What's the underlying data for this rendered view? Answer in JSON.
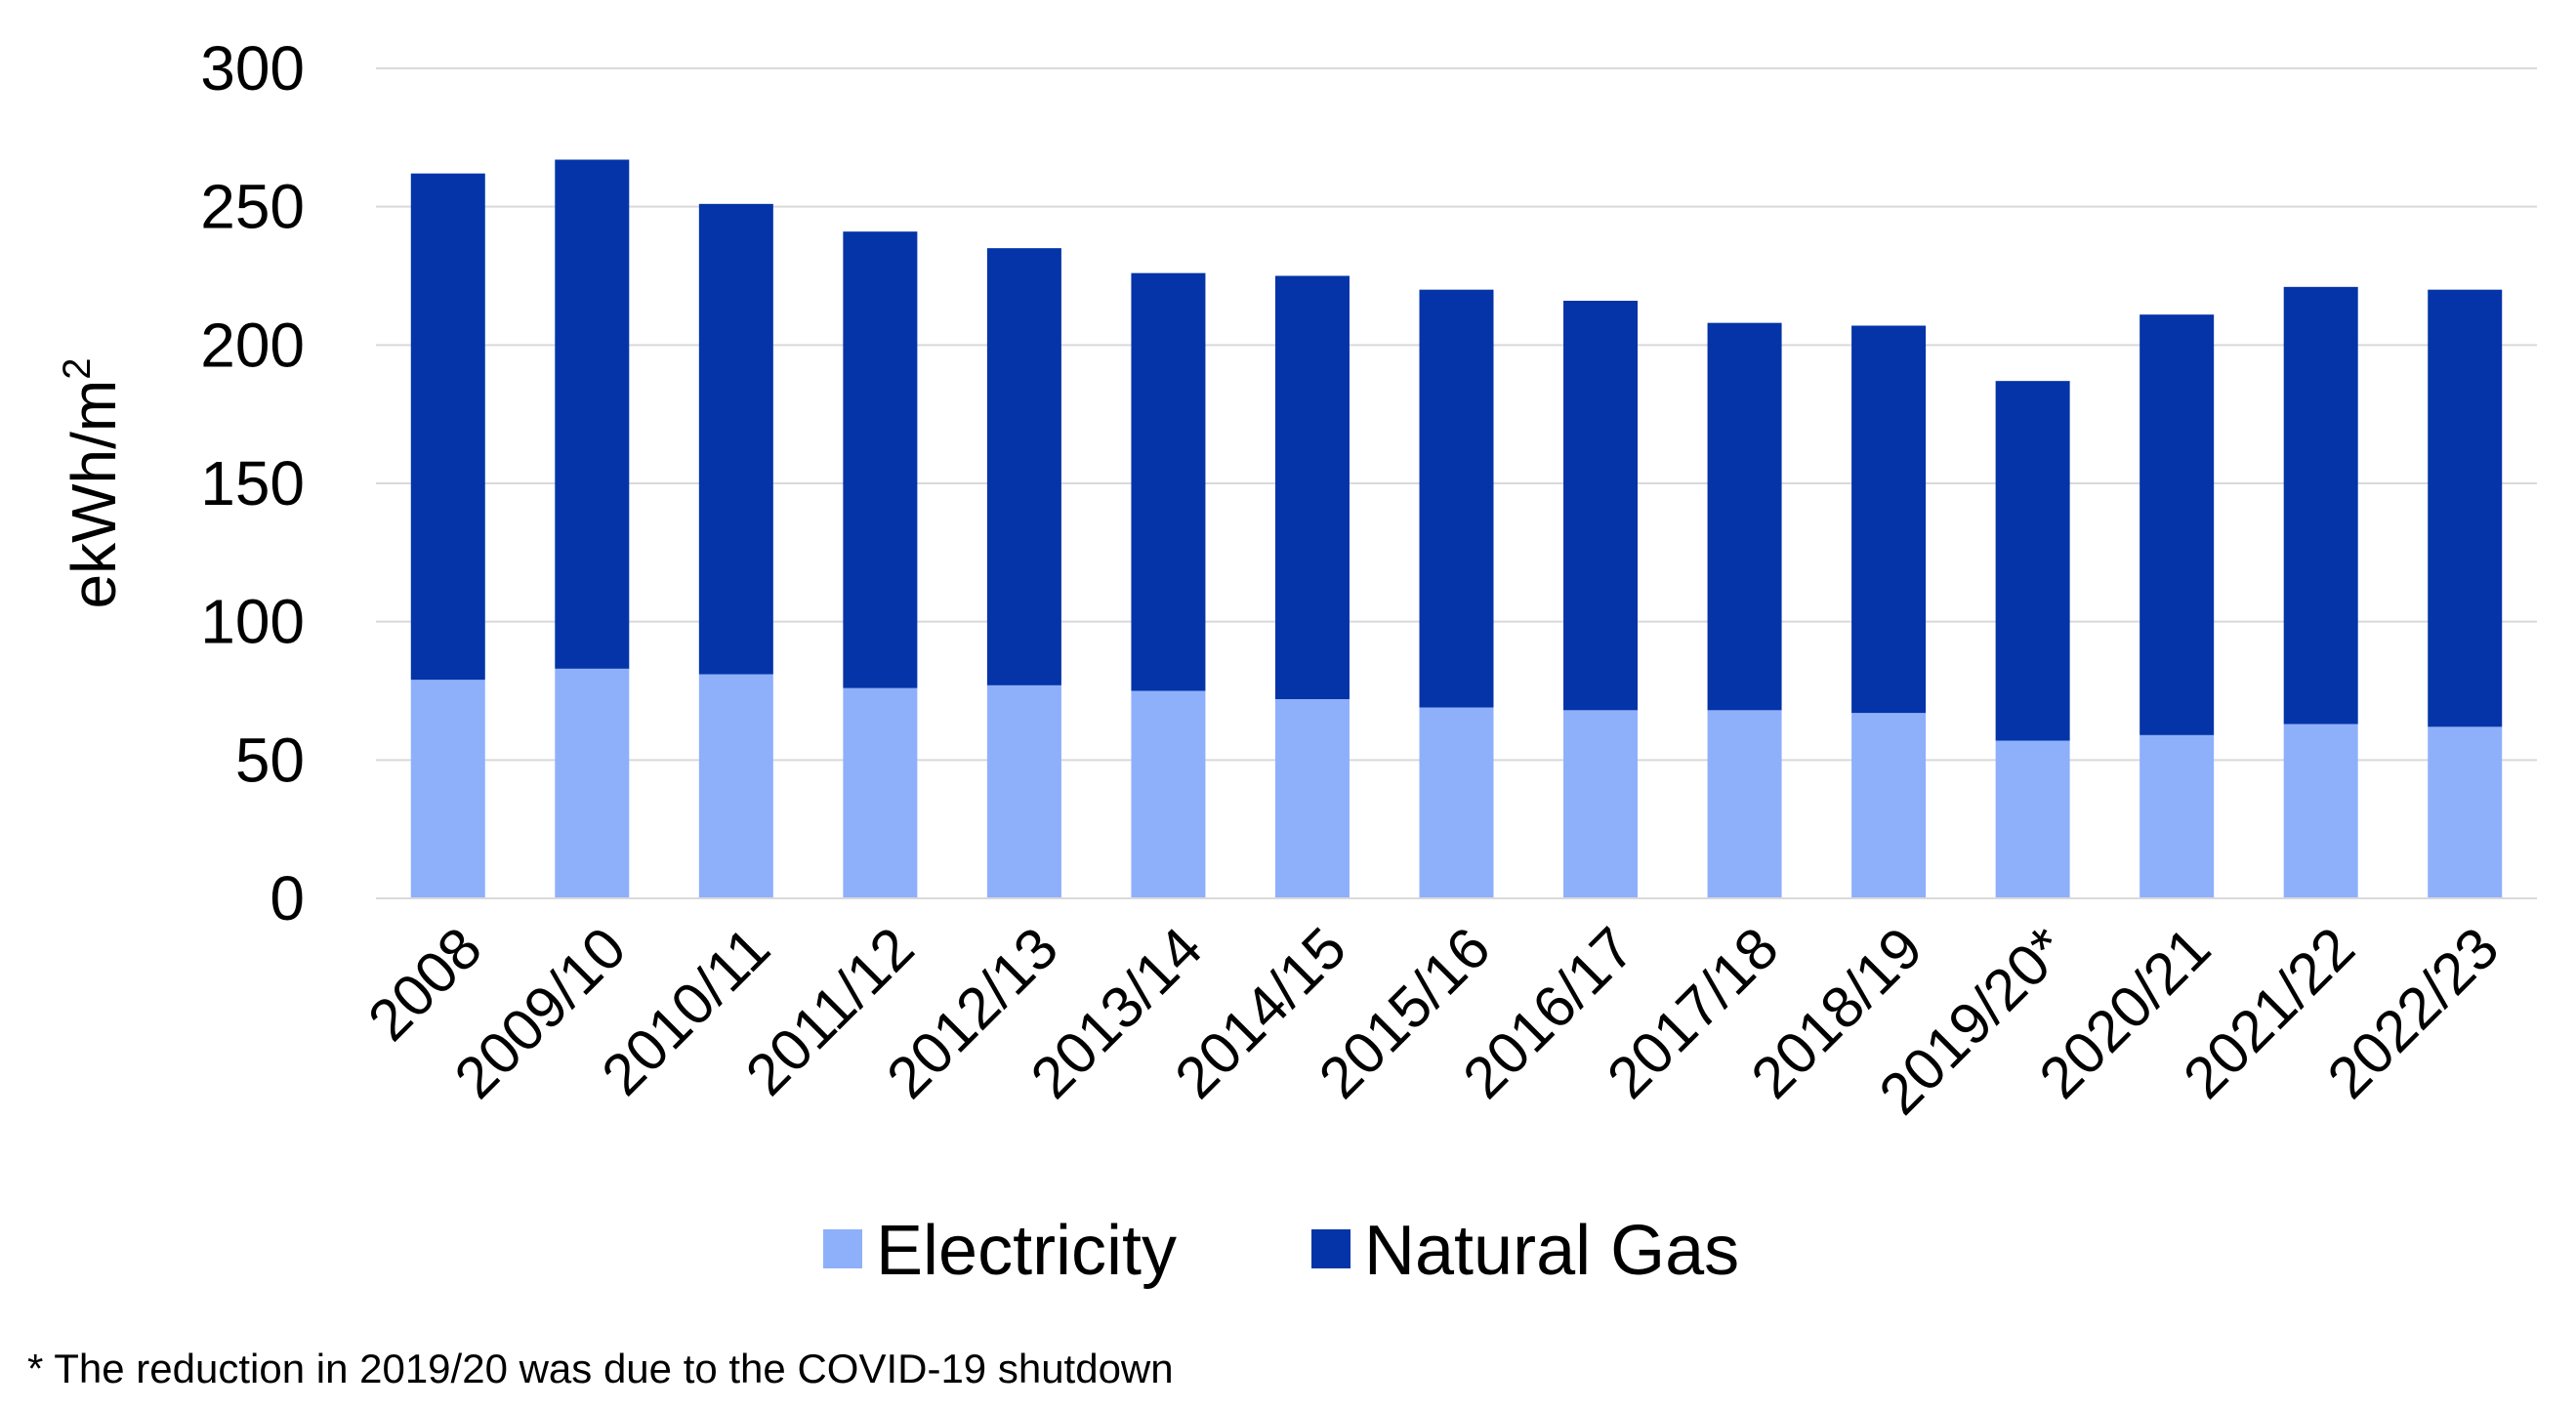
{
  "chart_data": {
    "type": "bar",
    "stacked": true,
    "ylabel": "ekWh/m",
    "ylabel_superscript": "2",
    "ylim": [
      0,
      300
    ],
    "yticks": [
      0,
      50,
      100,
      150,
      200,
      250,
      300
    ],
    "grid": true,
    "legend_position": "bottom",
    "categories": [
      "2008",
      "2009/10",
      "2010/11",
      "2011/12",
      "2012/13",
      "2013/14",
      "2014/15",
      "2015/16",
      "2016/17",
      "2017/18",
      "2018/19",
      "2019/20*",
      "2020/21",
      "2021/22",
      "2022/23"
    ],
    "series": [
      {
        "name": "Electricity",
        "color": "#8eb0fb",
        "values": [
          79,
          83,
          81,
          76,
          77,
          75,
          72,
          69,
          68,
          68,
          67,
          57,
          59,
          63,
          62
        ]
      },
      {
        "name": "Natural Gas",
        "color": "#0434a8",
        "values": [
          183,
          184,
          170,
          165,
          158,
          151,
          153,
          151,
          148,
          140,
          140,
          130,
          152,
          158,
          158
        ]
      }
    ]
  },
  "footnote": "* The reduction in 2019/20 was due to the COVID-19 shutdown"
}
